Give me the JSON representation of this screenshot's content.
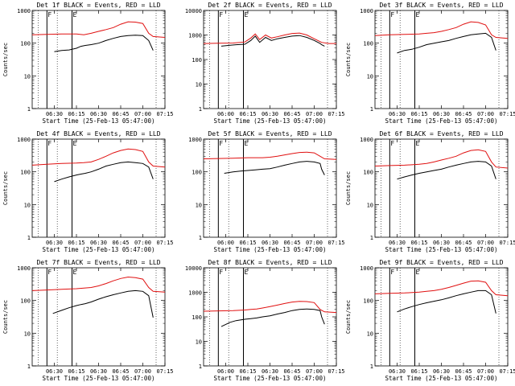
{
  "colors": {
    "events": "#000000",
    "lld": "#e01010",
    "axes": "#000000",
    "background": "#ffffff"
  },
  "chart_data": [
    {
      "type": "line",
      "title": "Det 1f  BLACK = Events, RED = LLD",
      "xlabel": "Start Time (25-Feb-13 05:47:00)",
      "ylabel": "Counts/sec",
      "yscale": "log",
      "ylim": [
        1,
        1000
      ],
      "xlim": [
        0,
        90
      ],
      "xticks": [
        "06:30",
        "06:15",
        "06:30",
        "06:45",
        "07:00",
        "07:15"
      ],
      "yticks": [
        "1",
        "10",
        "100",
        "1000"
      ],
      "markers": [
        "F",
        "E"
      ],
      "series": [
        {
          "name": "Events",
          "x": [
            15,
            20,
            25,
            30,
            33,
            36,
            40,
            45,
            50,
            55,
            60,
            65,
            70,
            75,
            79,
            82
          ],
          "y": [
            55,
            60,
            62,
            70,
            80,
            85,
            90,
            100,
            120,
            140,
            160,
            170,
            175,
            170,
            120,
            60
          ]
        },
        {
          "name": "LLD",
          "x": [
            0,
            10,
            20,
            30,
            35,
            40,
            45,
            50,
            55,
            60,
            65,
            70,
            75,
            79,
            82,
            90
          ],
          "y": [
            180,
            185,
            190,
            190,
            180,
            200,
            230,
            260,
            300,
            380,
            450,
            440,
            400,
            200,
            160,
            150
          ]
        }
      ]
    },
    {
      "type": "line",
      "title": "Det 2f  BLACK = Events, RED = LLD",
      "xlabel": "Start Time (25-Feb-13 05:47:00)",
      "ylabel": "",
      "yscale": "log",
      "ylim": [
        1,
        10000
      ],
      "xlim": [
        0,
        90
      ],
      "xticks": [
        "06:00",
        "06:15",
        "06:30",
        "06:45",
        "07:00",
        "07:15"
      ],
      "yticks": [
        "1",
        "10",
        "100",
        "1000",
        "10000"
      ],
      "markers": [
        "F",
        "E"
      ],
      "series": [
        {
          "name": "Events",
          "x": [
            12,
            18,
            22,
            28,
            32,
            35,
            38,
            42,
            46,
            50,
            55,
            60,
            65,
            70,
            75,
            79,
            80,
            82
          ],
          "y": [
            350,
            380,
            400,
            420,
            600,
            900,
            500,
            800,
            600,
            700,
            800,
            900,
            950,
            800,
            600,
            450,
            400,
            350
          ]
        },
        {
          "name": "LLD",
          "x": [
            0,
            10,
            20,
            28,
            32,
            35,
            38,
            42,
            46,
            50,
            55,
            60,
            65,
            70,
            75,
            80,
            85,
            90
          ],
          "y": [
            450,
            460,
            470,
            520,
            750,
            1100,
            650,
            1000,
            750,
            850,
            1000,
            1150,
            1200,
            1000,
            700,
            500,
            450,
            450
          ]
        }
      ]
    },
    {
      "type": "line",
      "title": "Det 3f  BLACK = Events, RED = LLD",
      "xlabel": "Start Time (25-Feb-13 05:47:00)",
      "ylabel": "Counts/sec",
      "yscale": "log",
      "ylim": [
        1,
        1000
      ],
      "xlim": [
        0,
        90
      ],
      "xticks": [
        "06:30",
        "06:15",
        "06:30",
        "06:45",
        "07:00",
        "07:15"
      ],
      "yticks": [
        "1",
        "10",
        "100",
        "1000"
      ],
      "markers": [
        "F",
        "E"
      ],
      "series": [
        {
          "name": "Events",
          "x": [
            15,
            20,
            25,
            30,
            35,
            40,
            45,
            50,
            55,
            60,
            65,
            70,
            75,
            79,
            82
          ],
          "y": [
            50,
            60,
            65,
            75,
            90,
            100,
            110,
            120,
            140,
            160,
            180,
            190,
            200,
            150,
            60
          ]
        },
        {
          "name": "LLD",
          "x": [
            0,
            10,
            20,
            30,
            35,
            40,
            45,
            50,
            55,
            60,
            65,
            70,
            75,
            79,
            82,
            90
          ],
          "y": [
            170,
            180,
            185,
            190,
            200,
            210,
            230,
            260,
            300,
            380,
            450,
            430,
            360,
            180,
            150,
            140
          ]
        }
      ]
    },
    {
      "type": "line",
      "title": "Det 4f  BLACK = Events, RED = LLD",
      "xlabel": "Start Time (25-Feb-13 05:47:00)",
      "ylabel": "Counts/sec",
      "yscale": "log",
      "ylim": [
        1,
        1000
      ],
      "xlim": [
        0,
        90
      ],
      "xticks": [
        "06:30",
        "06:15",
        "06:30",
        "06:45",
        "07:00",
        "07:15"
      ],
      "yticks": [
        "1",
        "10",
        "100",
        "1000"
      ],
      "markers": [
        "F",
        "E"
      ],
      "series": [
        {
          "name": "Events",
          "x": [
            15,
            20,
            25,
            30,
            33,
            36,
            40,
            45,
            50,
            55,
            60,
            65,
            70,
            75,
            79,
            82
          ],
          "y": [
            50,
            60,
            70,
            80,
            85,
            90,
            100,
            120,
            150,
            170,
            190,
            200,
            190,
            180,
            140,
            60
          ]
        },
        {
          "name": "LLD",
          "x": [
            0,
            10,
            20,
            30,
            35,
            40,
            45,
            50,
            55,
            60,
            65,
            70,
            75,
            79,
            82,
            90
          ],
          "y": [
            160,
            170,
            180,
            185,
            190,
            200,
            240,
            300,
            380,
            450,
            500,
            480,
            420,
            200,
            150,
            140
          ]
        }
      ]
    },
    {
      "type": "line",
      "title": "Det 5f  BLACK = Events, RED = LLD",
      "xlabel": "Start Time (25-Feb-13 05:47:00)",
      "ylabel": "",
      "yscale": "log",
      "ylim": [
        1,
        1000
      ],
      "xlim": [
        0,
        90
      ],
      "xticks": [
        "06:00",
        "06:15",
        "06:30",
        "06:45",
        "07:00",
        "07:15"
      ],
      "yticks": [
        "1",
        "10",
        "100",
        "1000"
      ],
      "markers": [
        "F",
        "E"
      ],
      "series": [
        {
          "name": "Events",
          "x": [
            14,
            20,
            25,
            30,
            35,
            40,
            45,
            50,
            55,
            60,
            65,
            70,
            75,
            79,
            80,
            82
          ],
          "y": [
            90,
            100,
            105,
            110,
            115,
            120,
            125,
            140,
            160,
            180,
            200,
            210,
            200,
            180,
            120,
            80
          ]
        },
        {
          "name": "LLD",
          "x": [
            0,
            10,
            20,
            30,
            35,
            40,
            45,
            50,
            55,
            60,
            65,
            70,
            75,
            79,
            82,
            90
          ],
          "y": [
            250,
            255,
            260,
            270,
            270,
            270,
            280,
            300,
            330,
            360,
            390,
            400,
            380,
            300,
            250,
            240
          ]
        }
      ]
    },
    {
      "type": "line",
      "title": "Det 6f  BLACK = Events, RED = LLD",
      "xlabel": "Start Time (25-Feb-13 05:47:00)",
      "ylabel": "Counts/sec",
      "yscale": "log",
      "ylim": [
        1,
        1000
      ],
      "xlim": [
        0,
        90
      ],
      "xticks": [
        "06:30",
        "06:15",
        "06:30",
        "06:45",
        "07:00",
        "07:15"
      ],
      "yticks": [
        "1",
        "10",
        "100",
        "1000"
      ],
      "markers": [
        "F",
        "E"
      ],
      "series": [
        {
          "name": "Events",
          "x": [
            15,
            20,
            25,
            30,
            35,
            40,
            45,
            50,
            55,
            60,
            65,
            70,
            75,
            79,
            82
          ],
          "y": [
            60,
            70,
            80,
            90,
            100,
            110,
            120,
            140,
            160,
            180,
            200,
            210,
            200,
            150,
            60
          ]
        },
        {
          "name": "LLD",
          "x": [
            0,
            10,
            20,
            30,
            35,
            40,
            45,
            50,
            55,
            60,
            65,
            70,
            75,
            79,
            82,
            90
          ],
          "y": [
            150,
            155,
            160,
            170,
            180,
            200,
            230,
            260,
            300,
            380,
            450,
            470,
            420,
            200,
            140,
            130
          ]
        }
      ]
    },
    {
      "type": "line",
      "title": "Det 7f  BLACK = Events, RED = LLD",
      "xlabel": "Start Time (25-Feb-13 05:47:00)",
      "ylabel": "Counts/sec",
      "yscale": "log",
      "ylim": [
        1,
        1000
      ],
      "xlim": [
        0,
        90
      ],
      "xticks": [
        "06:30",
        "06:15",
        "06:30",
        "06:45",
        "07:00",
        "07:15"
      ],
      "yticks": [
        "1",
        "10",
        "100",
        "1000"
      ],
      "markers": [
        "F",
        "E"
      ],
      "series": [
        {
          "name": "Events",
          "x": [
            14,
            20,
            25,
            30,
            33,
            36,
            40,
            45,
            50,
            55,
            60,
            65,
            70,
            75,
            79,
            82
          ],
          "y": [
            40,
            50,
            60,
            70,
            75,
            80,
            90,
            110,
            130,
            150,
            170,
            190,
            200,
            190,
            140,
            30
          ]
        },
        {
          "name": "LLD",
          "x": [
            0,
            10,
            20,
            30,
            35,
            40,
            45,
            50,
            55,
            60,
            65,
            70,
            75,
            79,
            82,
            90
          ],
          "y": [
            200,
            210,
            220,
            230,
            240,
            250,
            280,
            330,
            400,
            470,
            520,
            500,
            450,
            250,
            190,
            180
          ]
        }
      ]
    },
    {
      "type": "line",
      "title": "Det 8f  BLACK = Events, RED = LLD",
      "xlabel": "Start Time (25-Feb-13 05:47:00)",
      "ylabel": "",
      "yscale": "log",
      "ylim": [
        1,
        10000
      ],
      "xlim": [
        0,
        90
      ],
      "xticks": [
        "06:00",
        "06:15",
        "06:30",
        "06:45",
        "07:00",
        "07:15"
      ],
      "yticks": [
        "1",
        "10",
        "100",
        "1000",
        "10000"
      ],
      "markers": [
        "F",
        "E"
      ],
      "series": [
        {
          "name": "Events",
          "x": [
            12,
            18,
            22,
            28,
            32,
            36,
            40,
            45,
            50,
            55,
            60,
            65,
            70,
            75,
            79,
            80,
            82
          ],
          "y": [
            40,
            60,
            70,
            80,
            85,
            90,
            100,
            110,
            130,
            150,
            180,
            200,
            210,
            200,
            180,
            100,
            50
          ]
        },
        {
          "name": "LLD",
          "x": [
            0,
            10,
            20,
            28,
            32,
            36,
            40,
            45,
            50,
            55,
            60,
            65,
            70,
            75,
            79,
            82,
            90
          ],
          "y": [
            170,
            175,
            180,
            190,
            200,
            210,
            230,
            260,
            300,
            350,
            400,
            430,
            420,
            380,
            200,
            160,
            150
          ]
        }
      ]
    },
    {
      "type": "line",
      "title": "Det 9f  BLACK = Events, RED = LLD",
      "xlabel": "Start Time (25-Feb-13 05:47:00)",
      "ylabel": "Counts/sec",
      "yscale": "log",
      "ylim": [
        1,
        1000
      ],
      "xlim": [
        0,
        90
      ],
      "xticks": [
        "06:30",
        "06:15",
        "06:30",
        "06:45",
        "07:00",
        "07:15"
      ],
      "yticks": [
        "1",
        "10",
        "100",
        "1000"
      ],
      "markers": [
        "F",
        "E"
      ],
      "series": [
        {
          "name": "Events",
          "x": [
            15,
            20,
            25,
            30,
            35,
            40,
            45,
            50,
            55,
            60,
            65,
            70,
            75,
            79,
            82
          ],
          "y": [
            45,
            55,
            65,
            75,
            85,
            95,
            105,
            120,
            140,
            160,
            180,
            200,
            200,
            150,
            40
          ]
        },
        {
          "name": "LLD",
          "x": [
            0,
            10,
            20,
            30,
            35,
            40,
            45,
            50,
            55,
            60,
            65,
            70,
            75,
            79,
            82,
            90
          ],
          "y": [
            160,
            165,
            170,
            180,
            190,
            200,
            220,
            250,
            290,
            340,
            390,
            400,
            360,
            200,
            150,
            140
          ]
        }
      ]
    }
  ]
}
